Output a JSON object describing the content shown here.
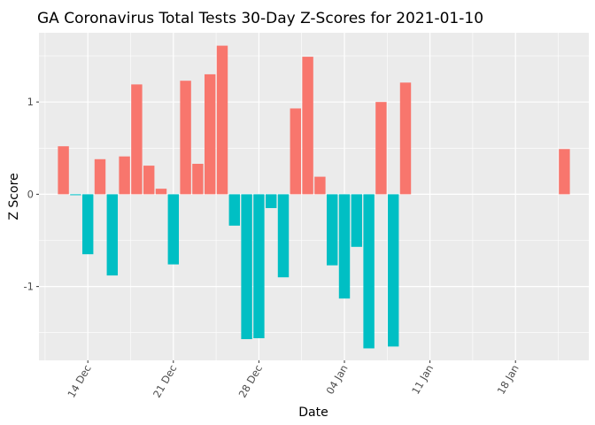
{
  "chart_data": {
    "type": "bar",
    "title": "GA Coronavirus Total Tests 30-Day Z-Scores for 2021-01-10",
    "xlabel": "Date",
    "ylabel": "Z Score",
    "ylim": [
      -1.8,
      1.75
    ],
    "xlim": [
      "2020-12-10",
      "2021-01-24"
    ],
    "y_ticks": [
      -1,
      0,
      1
    ],
    "y_tick_labels": [
      "-1",
      "0",
      "1"
    ],
    "x_ticks": [
      "2020-12-14",
      "2020-12-21",
      "2020-12-28",
      "2021-01-04",
      "2021-01-11",
      "2021-01-18"
    ],
    "x_tick_labels": [
      "14 Dec",
      "21 Dec",
      "28 Dec",
      "04 Jan",
      "11 Jan",
      "18 Jan"
    ],
    "grid": true,
    "legend": "none",
    "colors": {
      "positive": "#F8766D",
      "negative": "#00BFC4",
      "panel": "#EBEBEB",
      "grid": "#FFFFFF"
    },
    "series": [
      {
        "x": [
          "2020-12-12",
          "2020-12-13",
          "2020-12-14",
          "2020-12-15",
          "2020-12-16",
          "2020-12-17",
          "2020-12-18",
          "2020-12-19",
          "2020-12-20",
          "2020-12-21",
          "2020-12-22",
          "2020-12-23",
          "2020-12-24",
          "2020-12-25",
          "2020-12-26",
          "2020-12-27",
          "2020-12-28",
          "2020-12-29",
          "2020-12-30",
          "2020-12-31",
          "2021-01-01",
          "2021-01-02",
          "2021-01-03",
          "2021-01-04",
          "2021-01-05",
          "2021-01-06",
          "2021-01-07",
          "2021-01-08",
          "2021-01-09",
          "2021-01-10",
          "2021-01-22"
        ],
        "values": [
          0.52,
          -0.01,
          -0.65,
          0.38,
          -0.88,
          0.41,
          1.19,
          0.31,
          0.06,
          -0.76,
          1.23,
          0.33,
          1.3,
          1.61,
          -0.34,
          -1.57,
          -1.56,
          -0.15,
          -0.9,
          0.93,
          1.49,
          0.19,
          -0.77,
          -1.13,
          -0.57,
          -1.67,
          1.0,
          -1.65,
          1.21,
          null,
          0.49
        ]
      }
    ]
  }
}
